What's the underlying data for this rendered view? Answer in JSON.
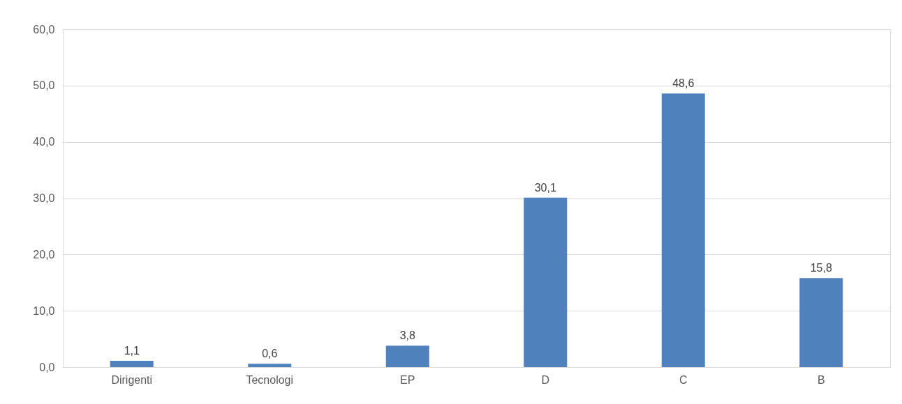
{
  "chart_data": {
    "type": "bar",
    "categories": [
      "Dirigenti",
      "Tecnologi",
      "EP",
      "D",
      "C",
      "B"
    ],
    "values": [
      1.1,
      0.6,
      3.8,
      30.1,
      48.6,
      15.8
    ],
    "value_labels": [
      "1,1",
      "0,6",
      "3,8",
      "30,1",
      "48,6",
      "15,8"
    ],
    "color": "#4f81bd",
    "ylim": [
      0,
      60
    ],
    "yticks": [
      {
        "value": 0,
        "label": "0,0"
      },
      {
        "value": 10,
        "label": "10,0"
      },
      {
        "value": 20,
        "label": "20,0"
      },
      {
        "value": 30,
        "label": "30,0"
      },
      {
        "value": 40,
        "label": "40,0"
      },
      {
        "value": 50,
        "label": "50,0"
      },
      {
        "value": 60,
        "label": "60,0"
      }
    ],
    "grid": "y"
  }
}
